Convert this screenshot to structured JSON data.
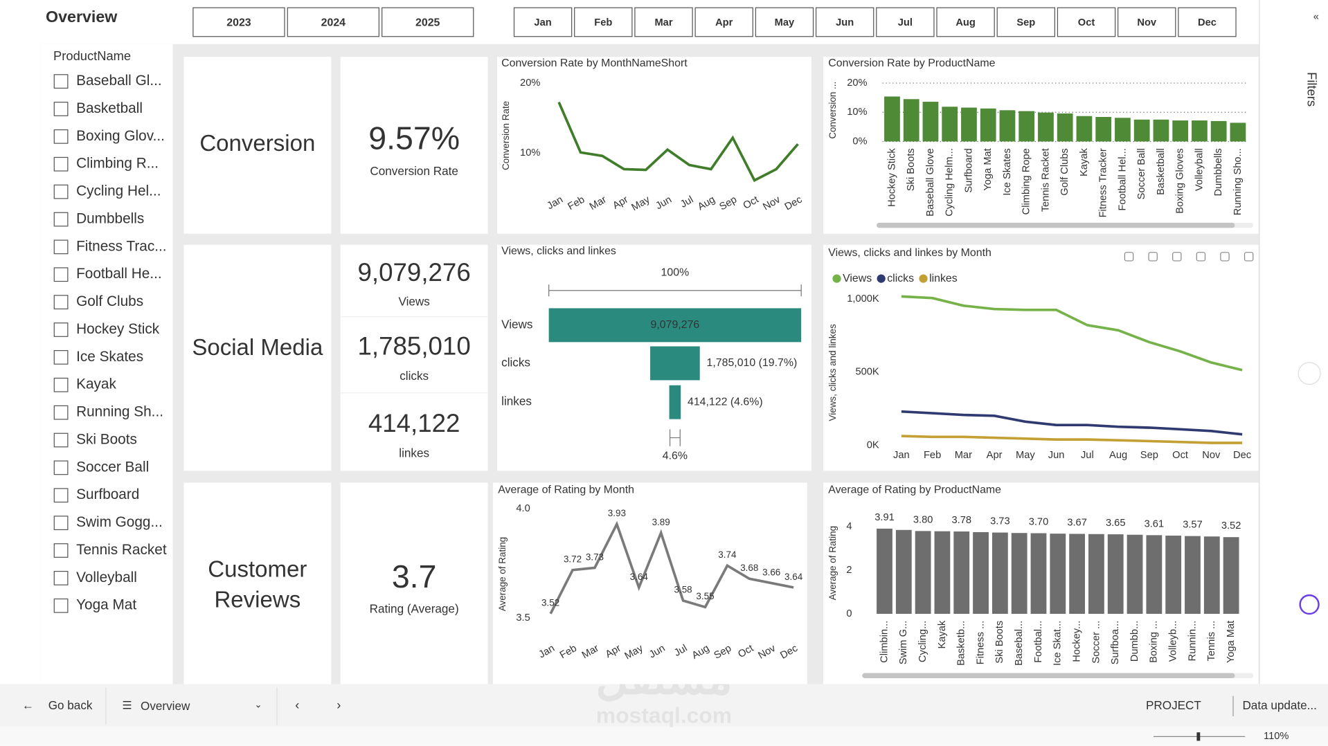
{
  "header": {
    "title": "Overview",
    "years": [
      "2023",
      "2024",
      "2025"
    ],
    "months": [
      "Jan",
      "Feb",
      "Mar",
      "Apr",
      "May",
      "Jun",
      "Jul",
      "Aug",
      "Sep",
      "Oct",
      "Nov",
      "Dec"
    ]
  },
  "slicer": {
    "title": "ProductName",
    "items": [
      "Baseball Gl...",
      "Basketball",
      "Boxing Glov...",
      "Climbing R...",
      "Cycling Hel...",
      "Dumbbells",
      "Fitness Trac...",
      "Football He...",
      "Golf Clubs",
      "Hockey Stick",
      "Ice Skates",
      "Kayak",
      "Running Sh...",
      "Ski Boots",
      "Soccer Ball",
      "Surfboard",
      "Swim Gogg...",
      "Tennis Racket",
      "Volleyball",
      "Yoga Mat"
    ]
  },
  "cards": [
    {
      "title": "Conversion",
      "items": [
        {
          "value": "9.57%",
          "label": "Conversion Rate"
        }
      ]
    },
    {
      "title": "Social Media",
      "items": [
        {
          "value": "9,079,276",
          "label": "Views"
        },
        {
          "value": "1,785,010",
          "label": "clicks"
        },
        {
          "value": "414,122",
          "label": "linkes"
        }
      ]
    },
    {
      "title": "Customer Reviews",
      "items": [
        {
          "value": "3.7",
          "label": "Rating (Average)"
        }
      ]
    }
  ],
  "chart_data": [
    {
      "type": "line",
      "title": "Conversion Rate by MonthNameShort",
      "y_label": "Conversion Rate",
      "categories": [
        "Jan",
        "Feb",
        "Mar",
        "Apr",
        "May",
        "Jun",
        "Jul",
        "Aug",
        "Sep",
        "Oct",
        "Nov",
        "Dec"
      ],
      "values": [
        17.3,
        10.1,
        9.6,
        7.7,
        7.6,
        10.5,
        8.3,
        7.7,
        12.2,
        6.1,
        7.7,
        11.3
      ],
      "color": "#3f7d2b",
      "ylim": [
        5,
        21
      ],
      "yticks": [
        {
          "value": 10,
          "label": "10%"
        },
        {
          "value": 20,
          "label": "20%"
        }
      ]
    },
    {
      "type": "bar",
      "title": "Conversion Rate by ProductName",
      "y_label": "Conversion ...",
      "categories": [
        "Hockey Stick",
        "Ski Boots",
        "Baseball Glove",
        "Cycling Helm...",
        "Surfboard",
        "Yoga Mat",
        "Ice Skates",
        "Climbing Rope",
        "Tennis Racket",
        "Golf Clubs",
        "Kayak",
        "Fitness Tracker",
        "Football Hel...",
        "Soccer Ball",
        "Basketball",
        "Boxing Gloves",
        "Volleyball",
        "Dumbbells",
        "Running Sho..."
      ],
      "values": [
        15.4,
        14.5,
        13.6,
        11.9,
        11.6,
        11.3,
        10.7,
        10.4,
        9.9,
        9.6,
        8.7,
        8.4,
        8.1,
        7.5,
        7.5,
        7.2,
        7.2,
        7.0,
        6.4
      ],
      "color": "#4f8a36",
      "ylim": [
        0,
        20
      ],
      "yticks": [
        {
          "value": 0,
          "label": "0%"
        },
        {
          "value": 10,
          "label": "10%"
        },
        {
          "value": 20,
          "label": "20%"
        }
      ],
      "grid": true
    },
    {
      "type": "funnel",
      "title": "Views, clicks and linkes",
      "categories": [
        "Views",
        "clicks",
        "linkes"
      ],
      "values": [
        9079276,
        1785010,
        414122
      ],
      "value_labels": [
        "9,079,276",
        "1,785,010 (19.7%)",
        "414,122 (4.6%)"
      ],
      "top_label": "100%",
      "bottom_label": "4.6%",
      "color": "#2a8a7e"
    },
    {
      "type": "line",
      "title": "Views, clicks and linkes by Month",
      "y_label": "Views, clicks and linkes",
      "categories": [
        "Jan",
        "Feb",
        "Mar",
        "Apr",
        "May",
        "Jun",
        "Jul",
        "Aug",
        "Sep",
        "Oct",
        "Nov",
        "Dec"
      ],
      "series": [
        {
          "name": "Views",
          "color": "#76b24a",
          "values": [
            1017,
            1006,
            954,
            931,
            925,
            925,
            821,
            786,
            705,
            642,
            566,
            514
          ]
        },
        {
          "name": "clicks",
          "color": "#2f3b70",
          "values": [
            231,
            220,
            208,
            202,
            162,
            139,
            139,
            127,
            121,
            110,
            98,
            75
          ]
        },
        {
          "name": "linkes",
          "color": "#c4a034",
          "values": [
            64,
            58,
            58,
            52,
            46,
            40,
            40,
            35,
            29,
            23,
            17,
            17
          ]
        }
      ],
      "ylim": [
        0,
        1050
      ],
      "yticks": [
        {
          "value": 0,
          "label": "0K"
        },
        {
          "value": 500,
          "label": "500K"
        },
        {
          "value": 1000,
          "label": "1,000K"
        }
      ],
      "legend": "top-left"
    },
    {
      "type": "line",
      "title": "Average of Rating by Month",
      "y_label": "Average of Rating",
      "categories": [
        "Jan",
        "Feb",
        "Mar",
        "Apr",
        "May",
        "Jun",
        "Jul",
        "Aug",
        "Sep",
        "Oct",
        "Nov",
        "Dec"
      ],
      "values": [
        3.52,
        3.72,
        3.73,
        3.93,
        3.64,
        3.89,
        3.58,
        3.55,
        3.74,
        3.68,
        3.66,
        3.64
      ],
      "color": "#7a7a7a",
      "ylim": [
        3.45,
        4.02
      ],
      "yticks": [
        3.5,
        {
          "value": 4,
          "label": "4.0"
        }
      ],
      "labels": true
    },
    {
      "type": "bar",
      "title": "Average of Rating by ProductName",
      "y_label": "Average of Rating",
      "categories": [
        "Climbin...",
        "Swim G...",
        "Cycling...",
        "Kayak",
        "Basketb...",
        "Fitness ...",
        "Ski Boots",
        "Basebal...",
        "Footbal...",
        "Ice Skat...",
        "Hockey...",
        "Soccer ...",
        "Surfboa...",
        "Dumbb...",
        "Boxing ...",
        "Volleyb...",
        "Runnin...",
        "Tennis ...",
        "Yoga Mat"
      ],
      "values": [
        3.91,
        3.85,
        3.8,
        3.79,
        3.78,
        3.75,
        3.73,
        3.71,
        3.7,
        3.68,
        3.67,
        3.66,
        3.65,
        3.63,
        3.61,
        3.59,
        3.57,
        3.55,
        3.52
      ],
      "value_labels": [
        "3.91",
        null,
        "3.80",
        null,
        "3.78",
        null,
        "3.73",
        null,
        "3.70",
        null,
        "3.67",
        null,
        "3.65",
        null,
        "3.61",
        null,
        "3.57",
        null,
        "3.52"
      ],
      "color": "#6e6e6e",
      "ylim": [
        0,
        4.6
      ],
      "yticks": [
        0,
        2,
        4
      ]
    }
  ],
  "footer": {
    "back": "Go back",
    "page": "Overview",
    "project": "PROJECT",
    "update": "Data update...",
    "zoom": "110%"
  },
  "side": {
    "filters": "Filters"
  },
  "watermark": [
    "مستقل",
    "mostaql.com"
  ]
}
